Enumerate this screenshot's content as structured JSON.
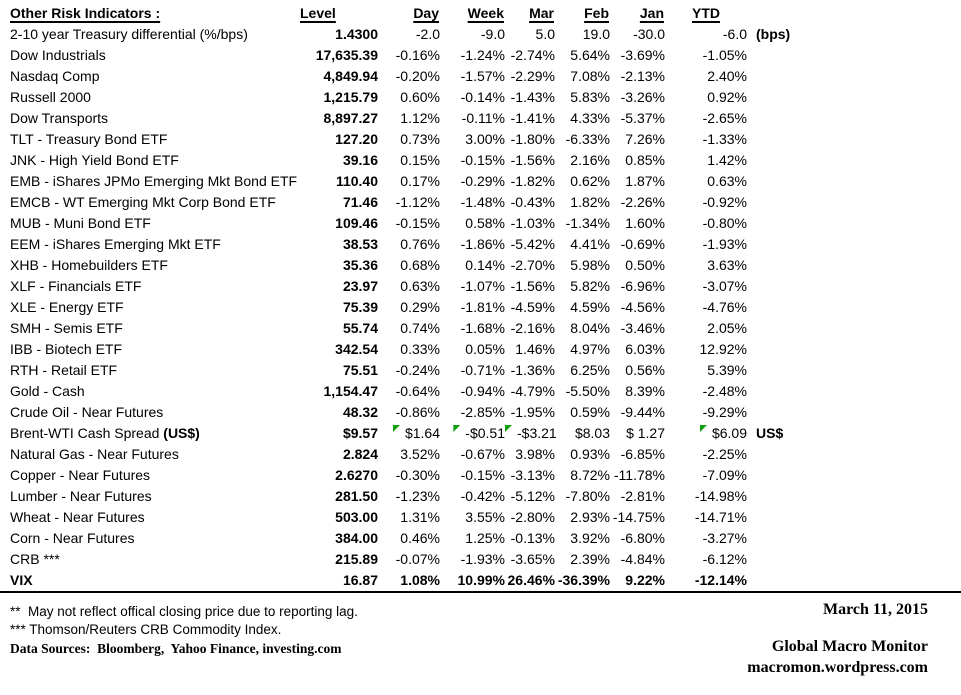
{
  "title": "Other Risk Indicators :",
  "columns": [
    {
      "label": "Level",
      "align": "left"
    },
    {
      "label": "Day",
      "align": "right"
    },
    {
      "label": "Week",
      "align": "right"
    },
    {
      "label": "Mar",
      "align": "right"
    },
    {
      "label": "Feb",
      "align": "right"
    },
    {
      "label": "Jan",
      "align": "right"
    },
    {
      "label": "YTD",
      "align": "center"
    }
  ],
  "rows": [
    {
      "label": "2-10 year Treasury differential (%/bps)",
      "values": [
        "1.4300",
        "-2.0",
        "-9.0",
        "5.0",
        "19.0",
        "-30.0",
        "-6.0"
      ],
      "note": "(bps)"
    },
    {
      "label": "Dow Industrials",
      "values": [
        "17,635.39",
        "-0.16%",
        "-1.24%",
        "-2.74%",
        "5.64%",
        "-3.69%",
        "-1.05%"
      ]
    },
    {
      "label": "Nasdaq Comp",
      "values": [
        "4,849.94",
        "-0.20%",
        "-1.57%",
        "-2.29%",
        "7.08%",
        "-2.13%",
        "2.40%"
      ]
    },
    {
      "label": "Russell 2000",
      "values": [
        "1,215.79",
        "0.60%",
        "-0.14%",
        "-1.43%",
        "5.83%",
        "-3.26%",
        "0.92%"
      ]
    },
    {
      "label": "Dow Transports",
      "values": [
        "8,897.27",
        "1.12%",
        "-0.11%",
        "-1.41%",
        "4.33%",
        "-5.37%",
        "-2.65%"
      ]
    },
    {
      "label": "TLT - Treasury Bond ETF",
      "values": [
        "127.20",
        "0.73%",
        "3.00%",
        "-1.80%",
        "-6.33%",
        "7.26%",
        "-1.33%"
      ]
    },
    {
      "label": "JNK - High Yield Bond ETF",
      "values": [
        "39.16",
        "0.15%",
        "-0.15%",
        "-1.56%",
        "2.16%",
        "0.85%",
        "1.42%"
      ]
    },
    {
      "label": "EMB - iShares JPMo Emerging Mkt Bond ETF",
      "values": [
        "110.40",
        "0.17%",
        "-0.29%",
        "-1.82%",
        "0.62%",
        "1.87%",
        "0.63%"
      ]
    },
    {
      "label": "EMCB - WT Emerging Mkt Corp Bond ETF",
      "values": [
        "71.46",
        "-1.12%",
        "-1.48%",
        "-0.43%",
        "1.82%",
        "-2.26%",
        "-0.92%"
      ]
    },
    {
      "label": "MUB - Muni Bond ETF",
      "values": [
        "109.46",
        "-0.15%",
        "0.58%",
        "-1.03%",
        "-1.34%",
        "1.60%",
        "-0.80%"
      ]
    },
    {
      "label": "EEM - iShares Emerging Mkt ETF",
      "values": [
        "38.53",
        "0.76%",
        "-1.86%",
        "-5.42%",
        "4.41%",
        "-0.69%",
        "-1.93%"
      ]
    },
    {
      "label": "XHB - Homebuilders ETF",
      "values": [
        "35.36",
        "0.68%",
        "0.14%",
        "-2.70%",
        "5.98%",
        "0.50%",
        "3.63%"
      ]
    },
    {
      "label": "XLF - Financials ETF",
      "values": [
        "23.97",
        "0.63%",
        "-1.07%",
        "-1.56%",
        "5.82%",
        "-6.96%",
        "-3.07%"
      ]
    },
    {
      "label": "XLE - Energy ETF",
      "values": [
        "75.39",
        "0.29%",
        "-1.81%",
        "-4.59%",
        "4.59%",
        "-4.56%",
        "-4.76%"
      ]
    },
    {
      "label": "SMH - Semis ETF",
      "values": [
        "55.74",
        "0.74%",
        "-1.68%",
        "-2.16%",
        "8.04%",
        "-3.46%",
        "2.05%"
      ]
    },
    {
      "label": "IBB - Biotech ETF",
      "values": [
        "342.54",
        "0.33%",
        "0.05%",
        "1.46%",
        "4.97%",
        "6.03%",
        "12.92%"
      ]
    },
    {
      "label": "RTH - Retail ETF",
      "values": [
        "75.51",
        "-0.24%",
        "-0.71%",
        "-1.36%",
        "6.25%",
        "0.56%",
        "5.39%"
      ]
    },
    {
      "label": "Gold - Cash",
      "values": [
        "1,154.47",
        "-0.64%",
        "-0.94%",
        "-4.79%",
        "-5.50%",
        "8.39%",
        "-2.48%"
      ]
    },
    {
      "label": "Crude Oil - Near Futures",
      "values": [
        "48.32",
        "-0.86%",
        "-2.85%",
        "-1.95%",
        "0.59%",
        "-9.44%",
        "-9.29%"
      ]
    },
    {
      "label": "Brent-WTI Cash Spread ",
      "label_bold": "(US$)",
      "values": [
        "$9.57",
        "$1.64",
        "-$0.51",
        "-$3.21",
        "$8.03",
        "$ 1.27",
        "$6.09"
      ],
      "note": "US$",
      "indicators": [
        1,
        2,
        3,
        6
      ]
    },
    {
      "label": "Natural Gas - Near Futures",
      "values": [
        "2.824",
        "3.52%",
        "-0.67%",
        "3.98%",
        "0.93%",
        "-6.85%",
        "-2.25%"
      ]
    },
    {
      "label": "Copper - Near Futures",
      "values": [
        "2.6270",
        "-0.30%",
        "-0.15%",
        "-3.13%",
        "8.72%",
        "-11.78%",
        "-7.09%"
      ]
    },
    {
      "label": "Lumber - Near Futures",
      "values": [
        "281.50",
        "-1.23%",
        "-0.42%",
        "-5.12%",
        "-7.80%",
        "-2.81%",
        "-14.98%"
      ]
    },
    {
      "label": "Wheat - Near Futures",
      "values": [
        "503.00",
        "1.31%",
        "3.55%",
        "-2.80%",
        "2.93%",
        "-14.75%",
        "-14.71%"
      ]
    },
    {
      "label": "Corn - Near Futures",
      "values": [
        "384.00",
        "0.46%",
        "1.25%",
        "-0.13%",
        "3.92%",
        "-6.80%",
        "-3.27%"
      ]
    },
    {
      "label": "CRB ***",
      "values": [
        "215.89",
        "-0.07%",
        "-1.93%",
        "-3.65%",
        "2.39%",
        "-4.84%",
        "-6.12%"
      ]
    },
    {
      "label": "VIX",
      "bold": true,
      "values": [
        "16.87",
        "1.08%",
        "10.99%",
        "26.46%",
        "-36.39%",
        "9.22%",
        "-12.14%"
      ]
    }
  ],
  "footnotes": {
    "reporting_lag": "**  May not reflect offical closing price due to reporting lag.",
    "crb_index": "*** Thomson/Reuters CRB Commodity Index.",
    "data_sources": "Data Sources:  Bloomberg,  Yahoo Finance, investing.com"
  },
  "footer": {
    "date": "March 11, 2015",
    "brand": "Global Macro Monitor",
    "url": "macromon.wordpress.com"
  },
  "colors": {
    "text": "#000000",
    "background": "#ffffff",
    "indicator_green": "#10a010"
  }
}
